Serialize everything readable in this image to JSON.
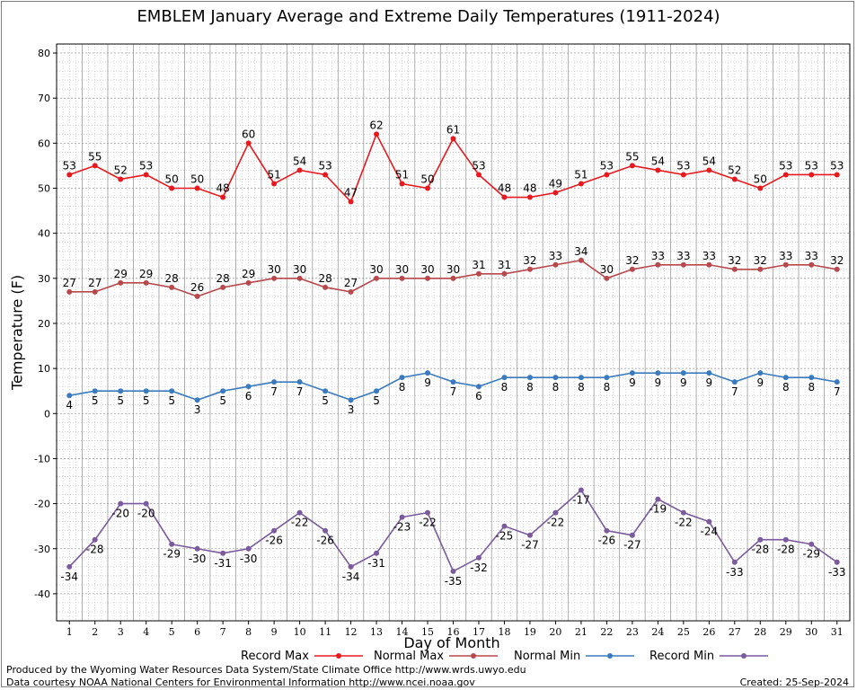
{
  "title": "EMBLEM January Average and Extreme Daily Temperatures (1911-2024)",
  "footer": {
    "line1": "Produced by the Wyoming Water Resources Data System/State Climate Office http://www.wrds.uwyo.edu",
    "line2": "Data courtesy NOAA National Centers for Environmental Information http://www.ncei.noaa.gov",
    "created": "Created:  25-Sep-2024"
  },
  "colors": {
    "record_max": "#e8191e",
    "normal_max": "#b8484c",
    "normal_min": "#3a7bbf",
    "record_min": "#7b5a9e"
  },
  "chart_data": {
    "type": "line",
    "title": "EMBLEM January Average and Extreme Daily Temperatures (1911-2024)",
    "xlabel": "Day of Month",
    "ylabel": "Temperature (F)",
    "ylim": [
      -46,
      82
    ],
    "xlim": [
      0.5,
      31.5
    ],
    "yticks": [
      -40,
      -30,
      -20,
      -10,
      0,
      10,
      20,
      30,
      40,
      50,
      60,
      70,
      80
    ],
    "grid": true,
    "legend": "bottom",
    "x": [
      1,
      2,
      3,
      4,
      5,
      6,
      7,
      8,
      9,
      10,
      11,
      12,
      13,
      14,
      15,
      16,
      17,
      18,
      19,
      20,
      21,
      22,
      23,
      24,
      25,
      26,
      27,
      28,
      29,
      30,
      31
    ],
    "series": [
      {
        "name": "Record Max",
        "color": "#e8191e",
        "values": [
          53,
          55,
          52,
          53,
          50,
          50,
          48,
          60,
          51,
          54,
          53,
          47,
          62,
          51,
          50,
          61,
          53,
          48,
          48,
          49,
          51,
          53,
          55,
          54,
          53,
          54,
          52,
          50,
          53,
          53,
          53
        ]
      },
      {
        "name": "Normal Max",
        "color": "#b8484c",
        "values": [
          27,
          27,
          29,
          29,
          28,
          26,
          28,
          29,
          30,
          30,
          28,
          27,
          30,
          30,
          30,
          30,
          31,
          31,
          32,
          33,
          34,
          30,
          32,
          33,
          33,
          33,
          32,
          32,
          33,
          33,
          32
        ]
      },
      {
        "name": "Normal Min",
        "color": "#3a7bbf",
        "values": [
          4,
          5,
          5,
          5,
          5,
          3,
          5,
          6,
          7,
          7,
          5,
          3,
          5,
          8,
          9,
          7,
          6,
          8,
          8,
          8,
          8,
          8,
          9,
          9,
          9,
          9,
          7,
          9,
          8,
          8,
          7
        ]
      },
      {
        "name": "Record Min",
        "color": "#7b5a9e",
        "values": [
          -34,
          -28,
          -20,
          -20,
          -29,
          -30,
          -31,
          -30,
          -26,
          -22,
          -26,
          -34,
          -31,
          -23,
          -22,
          -35,
          -32,
          -25,
          -27,
          -22,
          -17,
          -26,
          -27,
          -19,
          -22,
          -24,
          -33,
          -28,
          -28,
          -29,
          -33
        ]
      }
    ]
  }
}
